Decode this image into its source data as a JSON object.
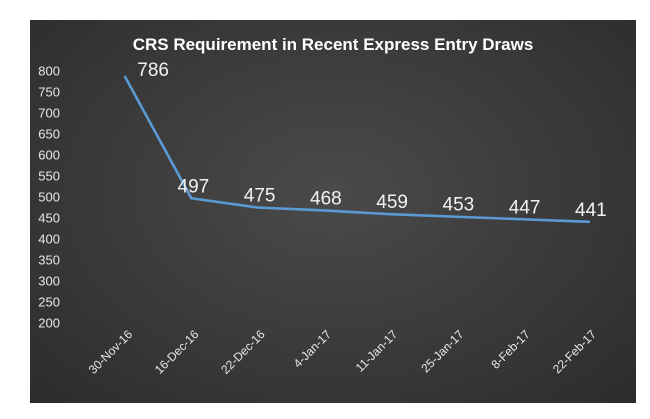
{
  "chart_data": {
    "type": "line",
    "title": "CRS Requirement in Recent Express Entry Draws",
    "xlabel": "",
    "ylabel": "",
    "categories": [
      "30-Nov-16",
      "16-Dec-16",
      "22-Dec-16",
      "4-Jan-17",
      "11-Jan-17",
      "25-Jan-17",
      "8-Feb-17",
      "22-Feb-17"
    ],
    "series": [
      {
        "values": [
          786,
          497,
          475,
          468,
          459,
          453,
          447,
          441
        ],
        "color": "#5b9bd5"
      }
    ],
    "ylim": [
      200,
      800
    ],
    "yticks": [
      800,
      750,
      700,
      650,
      600,
      550,
      500,
      450,
      400,
      350,
      300,
      250,
      200
    ],
    "grid": false,
    "legend": "none",
    "data_labels": true,
    "colors": {
      "background": "#3a3a3a",
      "text": "#e8e8e8",
      "line": "#5b9bd5"
    }
  }
}
